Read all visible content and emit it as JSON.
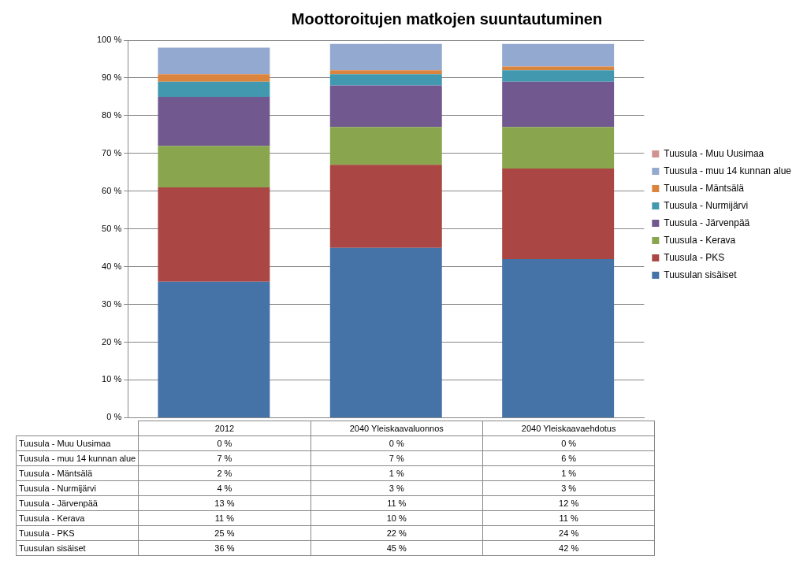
{
  "chart_data": {
    "type": "bar",
    "title": "Moottoroitujen matkojen suuntautuminen",
    "categories": [
      "2012",
      "2040 Yleiskaavaluonnos",
      "2040 Yleiskaavaehdotus"
    ],
    "stacked": true,
    "grid": true,
    "legend": "right",
    "ylim": [
      0,
      100
    ],
    "yticks": [
      {
        "value": 0,
        "label": "0 %"
      },
      {
        "value": 10,
        "label": "10 %"
      },
      {
        "value": 20,
        "label": "20 %"
      },
      {
        "value": 30,
        "label": "30 %"
      },
      {
        "value": 40,
        "label": "40 %"
      },
      {
        "value": 50,
        "label": "50 %"
      },
      {
        "value": 60,
        "label": "60 %"
      },
      {
        "value": 70,
        "label": "70 %"
      },
      {
        "value": 80,
        "label": "80 %"
      },
      {
        "value": 90,
        "label": "90 %"
      },
      {
        "value": 100,
        "label": "100 %"
      }
    ],
    "series": [
      {
        "name": "Tuusulan sisäiset",
        "color": "#4572a7",
        "values": [
          36,
          45,
          42
        ],
        "value_labels": [
          "36 %",
          "45 %",
          "42 %"
        ]
      },
      {
        "name": "Tuusula - PKS",
        "color": "#aa4643",
        "values": [
          25,
          22,
          24
        ],
        "value_labels": [
          "25 %",
          "22 %",
          "24 %"
        ]
      },
      {
        "name": "Tuusula - Kerava",
        "color": "#89a54e",
        "values": [
          11,
          10,
          11
        ],
        "value_labels": [
          "11 %",
          "10 %",
          "11 %"
        ]
      },
      {
        "name": "Tuusula - Järvenpää",
        "color": "#71588f",
        "values": [
          13,
          11,
          12
        ],
        "value_labels": [
          "13 %",
          "11 %",
          "12 %"
        ]
      },
      {
        "name": "Tuusula - Nurmijärvi",
        "color": "#4198af",
        "values": [
          4,
          3,
          3
        ],
        "value_labels": [
          "4 %",
          "3 %",
          "3 %"
        ]
      },
      {
        "name": "Tuusula - Mäntsälä",
        "color": "#db843d",
        "values": [
          2,
          1,
          1
        ],
        "value_labels": [
          "2 %",
          "1 %",
          "1 %"
        ]
      },
      {
        "name": "Tuusula - muu 14 kunnan alue",
        "color": "#93a9cf",
        "values": [
          7,
          7,
          6
        ],
        "value_labels": [
          "7 %",
          "7 %",
          "6 %"
        ]
      },
      {
        "name": "Tuusula - Muu Uusimaa",
        "color": "#d19392",
        "values": [
          0,
          0,
          0
        ],
        "value_labels": [
          "0 %",
          "0 %",
          "0 %"
        ]
      }
    ]
  }
}
